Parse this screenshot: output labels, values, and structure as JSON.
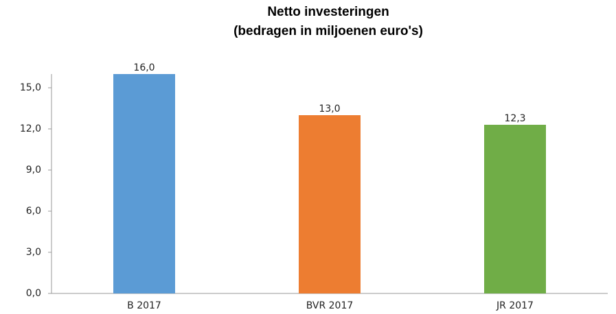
{
  "chart_data": {
    "type": "bar",
    "title": "Netto investeringen",
    "subtitle": "(bedragen in miljoenen euro's)",
    "categories": [
      "B 2017",
      "BVR 2017",
      "JR 2017"
    ],
    "values": [
      16.0,
      13.0,
      12.3
    ],
    "value_labels": [
      "16,0",
      "13,0",
      "12,3"
    ],
    "colors": [
      "#5b9bd5",
      "#ed7d31",
      "#70ad47"
    ],
    "ylim": [
      0,
      16
    ],
    "yticks": [
      {
        "value": 0,
        "label": "0,0"
      },
      {
        "value": 3,
        "label": "3,0"
      },
      {
        "value": 6,
        "label": "6,0"
      },
      {
        "value": 9,
        "label": "9,0"
      },
      {
        "value": 12,
        "label": "12,0"
      },
      {
        "value": 15,
        "label": "15,0"
      }
    ],
    "grid": false
  }
}
